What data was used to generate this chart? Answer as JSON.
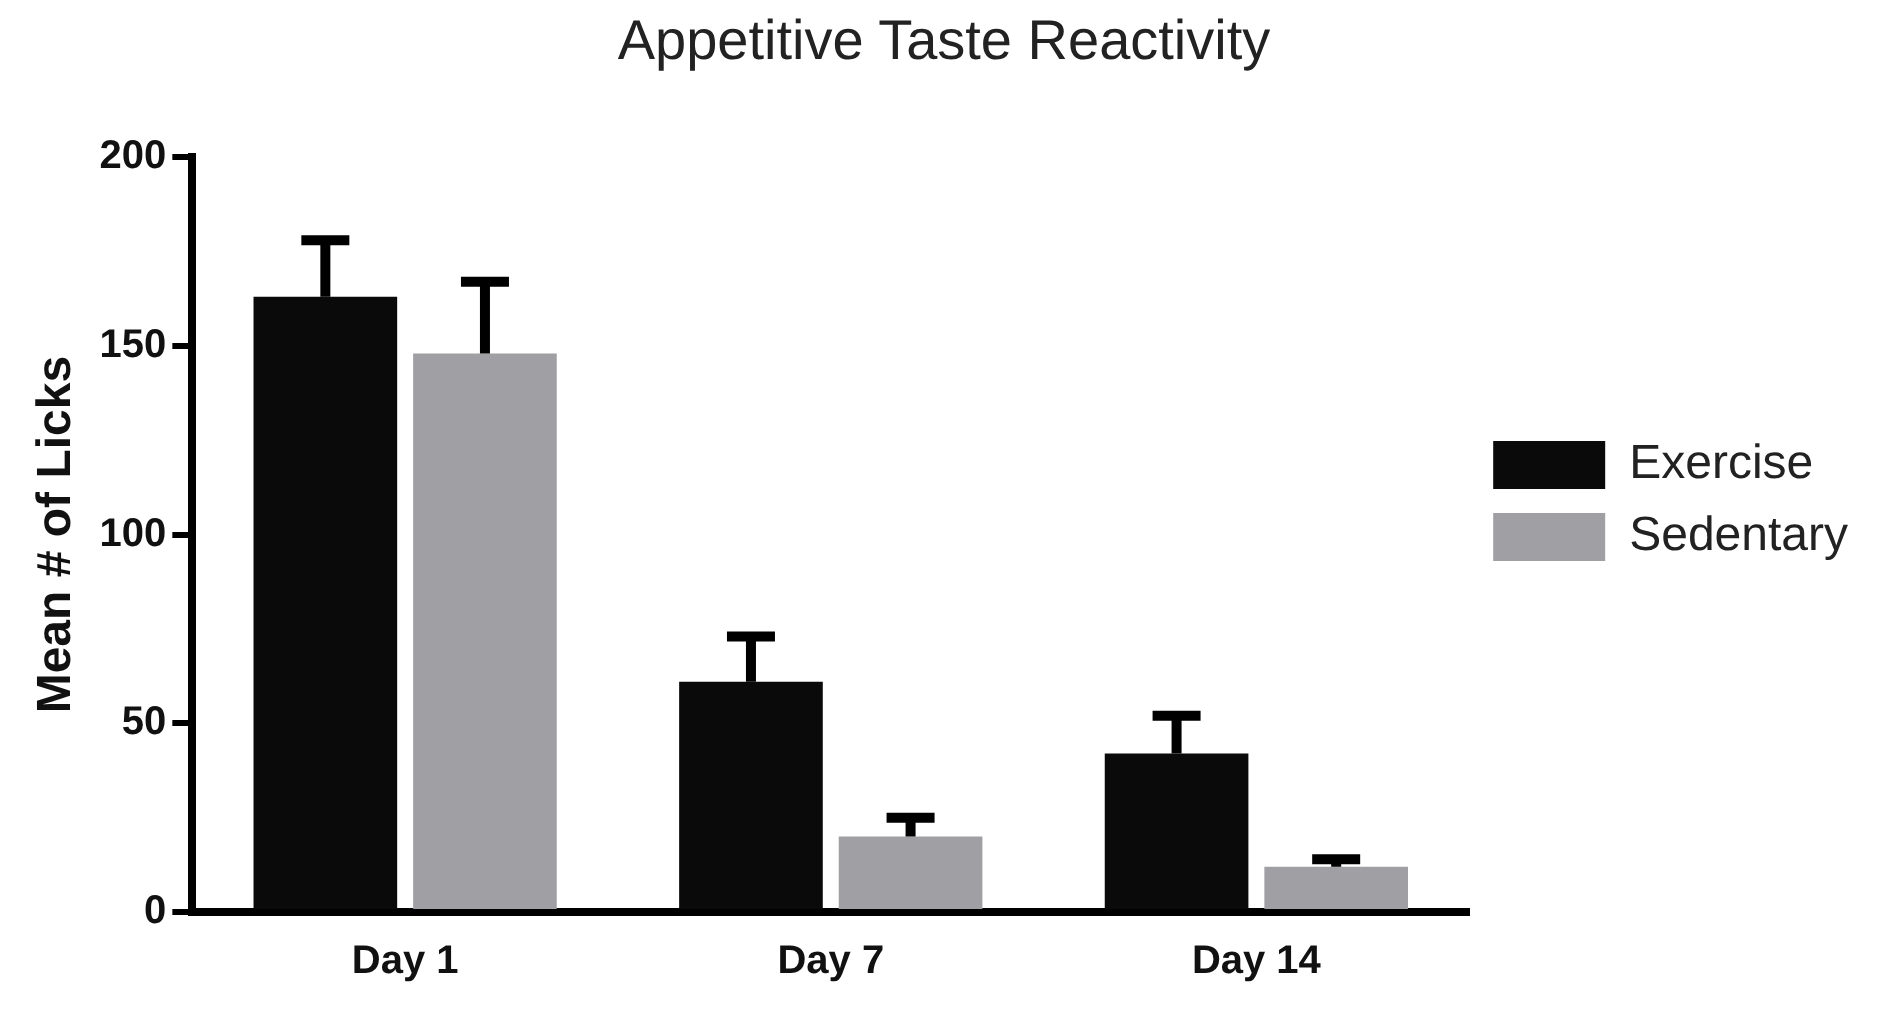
{
  "chart_data": {
    "type": "bar",
    "title": "Appetitive Taste Reactivity",
    "ylabel": "Mean # of Licks",
    "categories": [
      "Day 1",
      "Day 7",
      "Day 14"
    ],
    "series": [
      {
        "name": "Exercise",
        "color": "#0a0a0a",
        "values": [
          163,
          61,
          42
        ],
        "errors": [
          [
            163,
            178
          ],
          [
            61,
            73
          ],
          [
            42,
            52
          ]
        ]
      },
      {
        "name": "Sedentary",
        "color": "#a0a0a4",
        "values": [
          148,
          20,
          12
        ],
        "errors": [
          [
            148,
            167
          ],
          [
            20,
            25
          ],
          [
            12,
            14
          ]
        ]
      }
    ],
    "ylim": [
      0,
      200
    ],
    "yticks": [
      0,
      50,
      100,
      150,
      200
    ],
    "grid": false,
    "legend": "right"
  }
}
